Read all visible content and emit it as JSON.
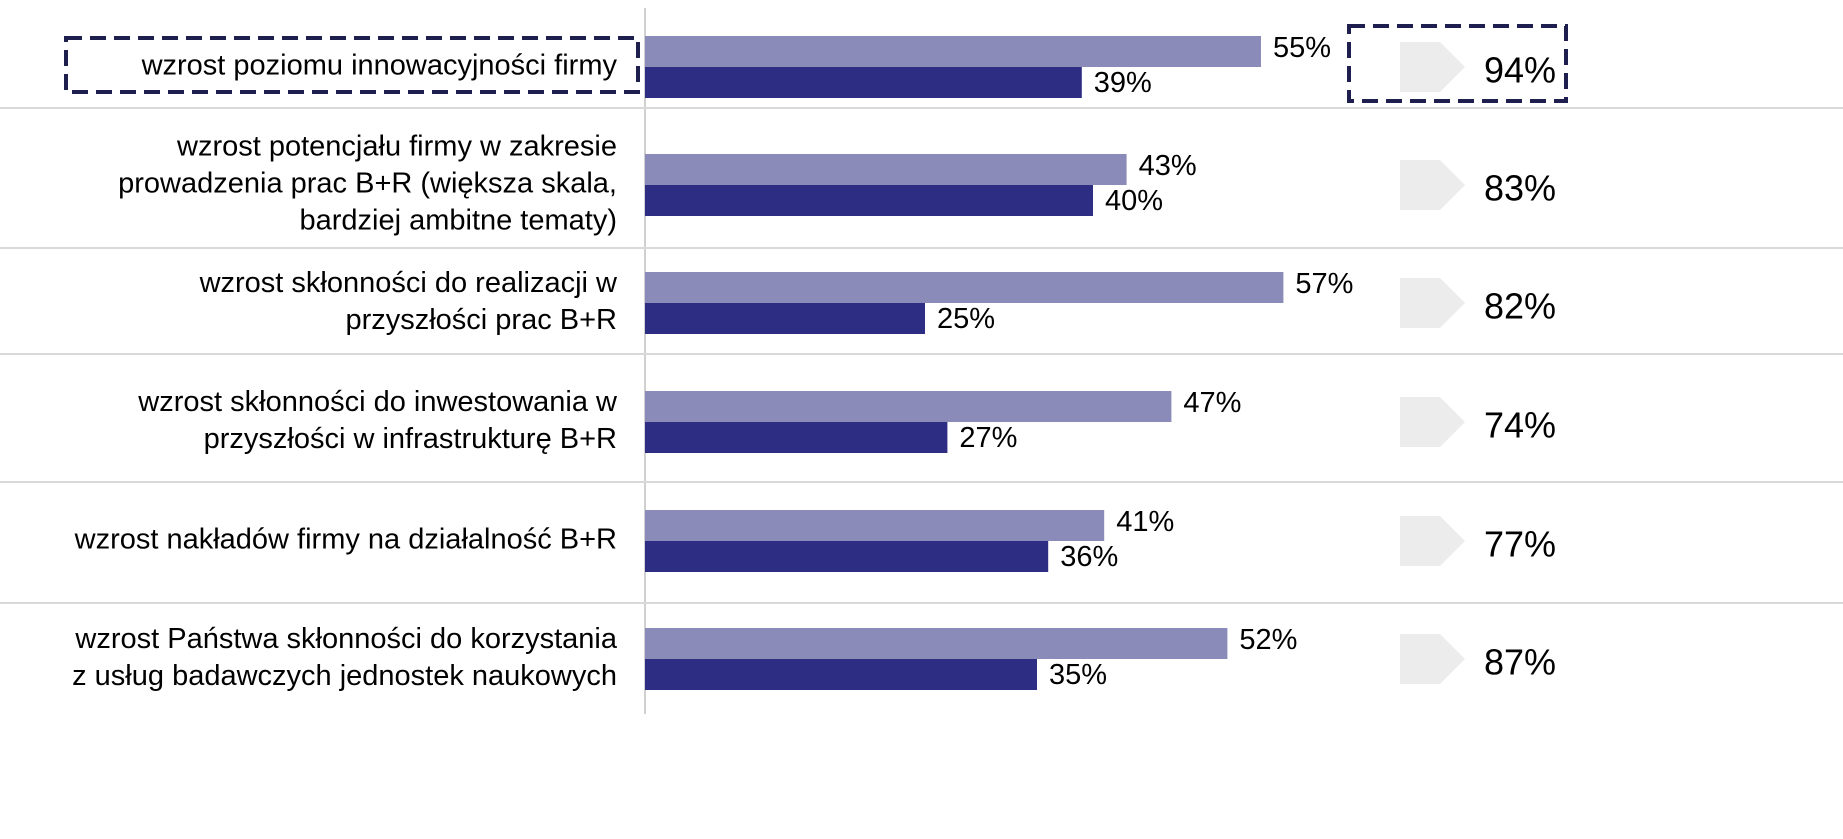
{
  "chart_data": {
    "type": "bar",
    "orientation": "horizontal",
    "categories": [
      [
        "wzrost poziomu innowacyjności firmy"
      ],
      [
        "wzrost potencjału firmy w zakresie",
        "prowadzenia prac B+R (większa skala,",
        "bardziej ambitne tematy)"
      ],
      [
        "wzrost skłonności do realizacji w",
        "przyszłości prac B+R"
      ],
      [
        "wzrost skłonności do inwestowania w",
        "przyszłości w infrastrukturę B+R"
      ],
      [
        "wzrost nakładów firmy na działalność B+R"
      ],
      [
        "wzrost Państwa skłonności do korzystania",
        "z usług badawczych jednostek naukowych"
      ]
    ],
    "series": [
      {
        "color": "#8b8bb9",
        "values": [
          55,
          43,
          57,
          47,
          41,
          52
        ],
        "value_labels": [
          "55%",
          "43%",
          "57%",
          "47%",
          "41%",
          "52%"
        ]
      },
      {
        "color": "#2e2d84",
        "values": [
          39,
          40,
          25,
          27,
          36,
          35
        ],
        "value_labels": [
          "39%",
          "40%",
          "25%",
          "27%",
          "36%",
          "35%"
        ]
      }
    ],
    "totals": {
      "values": [
        94,
        83,
        82,
        74,
        77,
        87
      ],
      "value_labels": [
        "94%",
        "83%",
        "82%",
        "74%",
        "77%",
        "87%"
      ]
    },
    "xlim": [
      0,
      100
    ]
  }
}
